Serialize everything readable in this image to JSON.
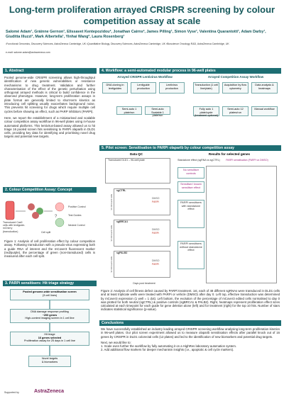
{
  "header": {
    "title": "Long-term proliferation arrayed CRISPR screening by colour competition assay at scale",
    "authors": "Salomé Adam¹, Gráinne Gernon¹, Elissavet Kentepozidou², Jonathan Cairns², James Pilling¹, Simon Vyse¹, Valentina Quarantotti¹, Adam Darby¹, Giuditta Illuzzi³, Mark Albertella¹, Yinhai Wang², Laura Rosenberg¹",
    "affiliations": "¹Functional Genomics, Discovery Sciences, AstraZeneca Cambridge, UK ²Quantitative Biology, Discovery Sciences, AstraZeneca Cambridge, UK ³Bioscience Oncology R&D, AstraZeneca Cambridge, UK",
    "email": "e-mail: salome.adam@astrazeneca.com"
  },
  "abstract": {
    "heading": "1. Abstract",
    "paragraphs": [
      "Pooled genome-wide CRISPR screening allows high-throughput identification of new genetic vulnerabilities or resistance mechanisms to drug treatment. Validation and further characterisation of the effect of the genetic perturbation using orthogonal arrayed methods is critical to build confidence in the observed phenotype. However, long-term proliferation assays in plate format are generally limited to short-term kinetics as introducing cell splitting usually exacerbates background noise. This prevents hit screening for drugs which require multiple cell cycles before showing an effect, such as PARP inhibitors (PARPi).",
      "Here, we report the establishment of a miniaturised and scalable colour competition assay workflow in 96-well plates using in-house automated platforms. This lentivirus-based assay allowed us to hit triage 16 pooled screen hits sensitising to PARPi olaparib in DLD1 cells, providing key data for identifying and prioritising novel drug targets and potential new targets."
    ]
  },
  "concept": {
    "heading": "2. Colour Competition Assay: Concept",
    "labels": [
      "Transduced Cas9 cells with lentiguide-mCherry (transduction)",
      "Positive Control",
      "Test Guides",
      "Neutral Control",
      "Cell split"
    ],
    "caption": "Figure 1: Analysis of cell proliferation effect by colour competition assay. Following transduction with a pseudo-virus expressing both a guide RNA of interest and the mCover3 fluorescent marker (red/purple), the percentage of green (non-transduced) cells is measured after each cell split."
  },
  "triage": {
    "heading": "3. PARPi sensitisers: Hit triage strategy",
    "steps": [
      "Pooled genome-wide sensitisation screen",
      "(3 cell lines)",
      "DNA damage response profiling",
      "~200 genes",
      "High-content imaging screen in 1 cell line",
      "Hit triage",
      "16 genes selected",
      "Proliferation assay for 25 days in 1 cell line",
      "Novel targets",
      "& biomarkers"
    ]
  },
  "workflow": {
    "heading": "4. Workflow: a semi-automated modular process in 96-well plates",
    "left_title": "Arrayed CRISPR Lentivirus Workflow",
    "right_title": "Arrayed Competition Assay Workflow",
    "left_steps": [
      "DNA cloning in lentiguides",
      "Lentiguide production",
      "Lentivirus production",
      "Semi-auto 1 plate/run",
      "Semi-auto Scalable 1 plate/run"
    ],
    "right_steps": [
      "Transduction (1 cell line/plate)",
      "Acquisition by flow cytometry",
      "Data analysis & heatmaps",
      "Fully auto 1 plate/cycle (treatment optional)",
      "Semi-auto 12 plates/run",
      "Manual workflow"
    ]
  },
  "pilot": {
    "heading": "5. Pilot screen: Sensitisation to PARPi olaparib by colour competition assay",
    "qc_title": "Data QC",
    "results_title": "Results for selected genes",
    "plate_title": "Transduced DLD1 – 96-well plate",
    "plot_titles": [
      "sgCTRL",
      "sgBRCA1",
      "sgPALB2"
    ],
    "x_label": "Days post treatment",
    "y_label": "% mCover3 cells",
    "legend": [
      "DMSO",
      "PARPi"
    ],
    "heat_headers": [
      "Standalone effect (sgRNA vs sgCTRL)",
      "PARPi sensitisation (PARPi vs DMSO)"
    ],
    "row_groups": [
      "No sensitiser controls",
      "Sensitiser/ known sensitiser effect",
      "PARPi sensitisers with standalone effect",
      "PARPi sensitisers without standalone effect"
    ],
    "caption": "Figure 2: Analysis of cell fitness defect caused by PARPi treatment. 1st, each of 48 different sgRNAs were transduced in DLD1 cells and at least triplicate wells were treated with PARPi or vehicle (DMSO) after day 0. Left top, effective transduction was determined by mCover3 expression (1 well = 1 dot). Left bottom, the evolution of the percentage of mCover3 edited cells normalised to day 0 was plotted for both neutral (sgCTRL) & positive controls (sgBRCA1 & PALB2). Right, heatmaps represent proliferation effect sizes calculated at each timepoint for each guide for gene deletion alone (left) and for treatment (right) for the top 10 hits. Number of stars indicates statistical significance (p-value)."
  },
  "conclusions": {
    "heading": "Conclusions",
    "paragraphs": [
      "We have successfully established an industry leading arrayed CRISPR screening workflow analysing long-term proliferation kinetics in 96-well plates. Our pilot screen experiment allowed us to measure olaparib sensitisation effects after parallel knock out of 16 genes by CRISPR in DLD1 colorectal cells (12 plates) and led to the identification of new biomarkers and potential drug targets.",
      "Next, we would like to:",
      "1. Scale even further the workflow by fully automating it on a HighRes laboratory automation system.",
      "2. Add additional flow markers for deeper mechanism insights (i.e., apoptotic & cell cycle markers)."
    ]
  },
  "footer": {
    "supported": "Supported by",
    "logo": "AstraZeneca"
  }
}
